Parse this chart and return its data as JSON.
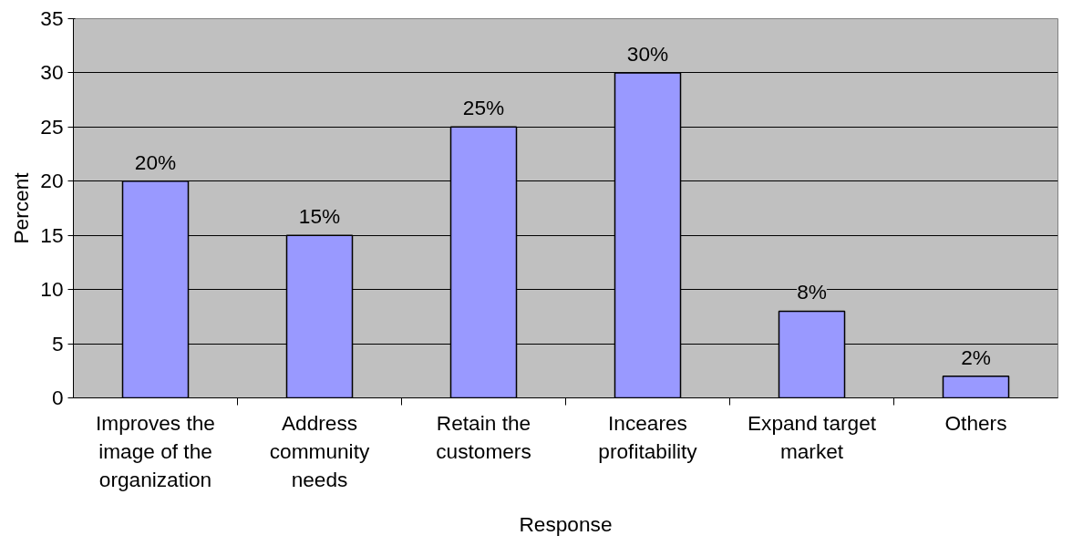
{
  "chart_data": {
    "type": "bar",
    "xlabel": "Response",
    "ylabel": "Percent",
    "categories": [
      "Improves the image of the organization",
      "Address community needs",
      "Retain the customers",
      "Inceares profitability",
      "Expand target market",
      "Others"
    ],
    "values": [
      20,
      15,
      25,
      30,
      8,
      2
    ],
    "value_labels": [
      "20%",
      "15%",
      "25%",
      "30%",
      "8%",
      "2%"
    ],
    "color": "#9999ff",
    "ylim": [
      0,
      35
    ],
    "yticks": [
      0,
      5,
      10,
      15,
      20,
      25,
      30,
      35
    ],
    "grid": "y"
  }
}
